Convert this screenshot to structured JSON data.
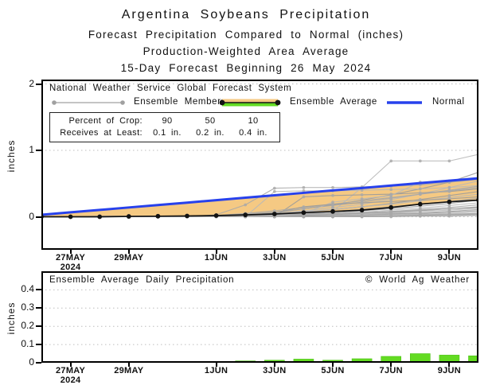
{
  "header": {
    "title": "Argentina Soybeans Precipitation",
    "subtitle1": "Forecast Precipitation Compared to Normal (inches)",
    "subtitle2": "Production-Weighted Area Average",
    "subtitle3": "15-Day Forecast Beginning 26 May 2024"
  },
  "legend": {
    "source": "National Weather Service Global Forecast System",
    "members_label": "Ensemble Members",
    "average_label": "Ensemble Average",
    "normal_label": "Normal"
  },
  "crop_table": {
    "row1_label": "Percent of Crop:",
    "row1_values": [
      "90",
      "50",
      "10"
    ],
    "row2_label": "Receives at Least:",
    "row2_values": [
      "0.1 in.",
      "0.2 in.",
      "0.4 in."
    ]
  },
  "panels": {
    "top_ylabel": "inches",
    "bottom_ylabel": "inches",
    "bottom_title": "Ensemble Average Daily Precipitation",
    "bottom_credit": "© World Ag Weather"
  },
  "colors": {
    "normal_line": "#2741EC",
    "deficit_fill": "#F5C983",
    "ensemble_average_line": "#121212",
    "ensemble_member_line": "#A9A9A9",
    "member_shades": [
      "#B8B8B8",
      "#A9A9A9",
      "#9B9B9B"
    ],
    "bar_fill": "#63DB22",
    "bar_stroke": "#4CC214",
    "grid": "#BEBEBE",
    "axis": "#000000"
  },
  "chart_data": [
    {
      "type": "line",
      "description": "Cumulative forecast precipitation vs normal, inches, daily points from 26 May to 10 Jun 2024",
      "x_start_date": "26MAY2024",
      "x_days": [
        0,
        1,
        2,
        3,
        4,
        5,
        6,
        7,
        8,
        9,
        10,
        11,
        12,
        13,
        14,
        15
      ],
      "x_ticks": [
        {
          "day": 1,
          "label": "27MAY",
          "sublabel": "2024"
        },
        {
          "day": 3,
          "label": "29MAY"
        },
        {
          "day": 6,
          "label": "1JUN"
        },
        {
          "day": 8,
          "label": "3JUN"
        },
        {
          "day": 10,
          "label": "5JUN"
        },
        {
          "day": 12,
          "label": "7JUN"
        },
        {
          "day": 14,
          "label": "9JUN"
        }
      ],
      "ylabel": "inches",
      "ylim": [
        -0.5,
        2.06
      ],
      "ytick_values": [
        0,
        1,
        2
      ],
      "ytick_labels": [
        "0",
        "1",
        "2"
      ],
      "grid": "dotted-horizontal",
      "deficit_fill_between": [
        "normal",
        "ensemble_average"
      ],
      "series": {
        "normal": [
          0.03,
          0.067,
          0.103,
          0.14,
          0.177,
          0.213,
          0.25,
          0.287,
          0.323,
          0.36,
          0.397,
          0.433,
          0.47,
          0.507,
          0.543,
          0.58
        ],
        "ensemble_average": [
          0,
          0,
          0,
          0.005,
          0.008,
          0.012,
          0.018,
          0.028,
          0.042,
          0.062,
          0.08,
          0.1,
          0.14,
          0.19,
          0.225,
          0.25
        ],
        "ensemble_members": [
          [
            0,
            0,
            0,
            0,
            0,
            0,
            0,
            0.01,
            0.02,
            0.04,
            0.08,
            0.44,
            0.84,
            0.84,
            0.84,
            0.94
          ],
          [
            0,
            0,
            0,
            0,
            0,
            0,
            0.03,
            0.18,
            0.43,
            0.44,
            0.44,
            0.45,
            0.46,
            0.48,
            0.52,
            0.56
          ],
          [
            0,
            0,
            0,
            0,
            0,
            0,
            0.01,
            0.03,
            0.06,
            0.12,
            0.18,
            0.25,
            0.33,
            0.42,
            0.52,
            0.67
          ],
          [
            0,
            0,
            0,
            0,
            0,
            0,
            0.01,
            0.02,
            0.05,
            0.09,
            0.14,
            0.19,
            0.26,
            0.34,
            0.44,
            0.54
          ],
          [
            0,
            0,
            0,
            0,
            0,
            0.01,
            0.02,
            0.04,
            0.07,
            0.12,
            0.17,
            0.22,
            0.28,
            0.34,
            0.4,
            0.46
          ],
          [
            0,
            0,
            0,
            0,
            0,
            0,
            0.01,
            0.02,
            0.04,
            0.07,
            0.11,
            0.15,
            0.2,
            0.26,
            0.32,
            0.38
          ],
          [
            0,
            0,
            0,
            0,
            0.01,
            0.01,
            0.02,
            0.03,
            0.05,
            0.08,
            0.11,
            0.15,
            0.19,
            0.24,
            0.29,
            0.34
          ],
          [
            0,
            0,
            0,
            0,
            0,
            0,
            0.01,
            0.02,
            0.03,
            0.05,
            0.08,
            0.11,
            0.15,
            0.19,
            0.23,
            0.28
          ],
          [
            0,
            0,
            0,
            0,
            0,
            0,
            0,
            0.01,
            0.02,
            0.04,
            0.06,
            0.09,
            0.12,
            0.16,
            0.2,
            0.25
          ],
          [
            0,
            0,
            0,
            0,
            0,
            0,
            0,
            0.01,
            0.02,
            0.03,
            0.05,
            0.07,
            0.1,
            0.13,
            0.17,
            0.21
          ],
          [
            0,
            0,
            0,
            0,
            0,
            0,
            0,
            0,
            0.01,
            0.02,
            0.04,
            0.06,
            0.08,
            0.11,
            0.14,
            0.18
          ],
          [
            0,
            0,
            0,
            0,
            0,
            0,
            0,
            0,
            0.01,
            0.02,
            0.03,
            0.05,
            0.07,
            0.09,
            0.12,
            0.15
          ],
          [
            0,
            0,
            0,
            0,
            0,
            0,
            0,
            0,
            0.01,
            0.01,
            0.02,
            0.04,
            0.06,
            0.08,
            0.1,
            0.13
          ],
          [
            0,
            0,
            0,
            0,
            0,
            0,
            0,
            0,
            0,
            0.01,
            0.02,
            0.03,
            0.05,
            0.06,
            0.08,
            0.11
          ],
          [
            0,
            0,
            0,
            0,
            0,
            0,
            0,
            0,
            0,
            0.01,
            0.01,
            0.02,
            0.04,
            0.05,
            0.07,
            0.09
          ],
          [
            0,
            0,
            0,
            0,
            0,
            0,
            0,
            0,
            0,
            0,
            0.01,
            0.02,
            0.03,
            0.04,
            0.05,
            0.07
          ],
          [
            0,
            0,
            0,
            0,
            0,
            0,
            0,
            0,
            0,
            0,
            0.01,
            0.01,
            0.02,
            0.03,
            0.04,
            0.05
          ],
          [
            0,
            0,
            0,
            0,
            0,
            0,
            0,
            0,
            0,
            0,
            0,
            0.01,
            0.01,
            0.02,
            0.03,
            0.04
          ],
          [
            0,
            0,
            0,
            0,
            0,
            0,
            0,
            0,
            0,
            0,
            0,
            0,
            0.01,
            0.01,
            0.02,
            0.03
          ],
          [
            0,
            0,
            0,
            0,
            0,
            0,
            0,
            0,
            0,
            0,
            0,
            0,
            0,
            0.01,
            0.01,
            0.02
          ],
          [
            0,
            0,
            0,
            0,
            0,
            0,
            0,
            0,
            0,
            0.3,
            0.32,
            0.33,
            0.34,
            0.36,
            0.38,
            0.42
          ],
          [
            0,
            0,
            0,
            0,
            0,
            0,
            0,
            0,
            0.01,
            0.05,
            0.22,
            0.27,
            0.32,
            0.52,
            0.54,
            0.58
          ],
          [
            0,
            0,
            0,
            0,
            0,
            0,
            0.02,
            0.05,
            0.09,
            0.14,
            0.19,
            0.24,
            0.29,
            0.34,
            0.39,
            0.44
          ],
          [
            0,
            0,
            0,
            0,
            0,
            0,
            0,
            0.02,
            0.06,
            0.15,
            0.19,
            0.21,
            0.23,
            0.25,
            0.27,
            0.3
          ],
          [
            0,
            0,
            0,
            0,
            0,
            0,
            0,
            0,
            0.38,
            0.39,
            0.39,
            0.4,
            0.41,
            0.42,
            0.44,
            0.47
          ],
          [
            0,
            0,
            0.01,
            0.01,
            0.01,
            0.01,
            0.02,
            0.02,
            0.03,
            0.04,
            0.05,
            0.06,
            0.08,
            0.1,
            0.12,
            0.14
          ]
        ]
      }
    },
    {
      "type": "bar",
      "title": "Ensemble Average Daily Precipitation",
      "description": "Ensemble average daily precipitation, inches per day, 26 May - 10 Jun 2024",
      "x_days": [
        0,
        1,
        2,
        3,
        4,
        5,
        6,
        7,
        8,
        9,
        10,
        11,
        12,
        13,
        14,
        15
      ],
      "values": [
        0.002,
        0.004,
        0.001,
        0.002,
        0.002,
        0.003,
        0.006,
        0.01,
        0.014,
        0.02,
        0.014,
        0.022,
        0.035,
        0.05,
        0.042,
        0.038
      ],
      "x_ticks": [
        {
          "day": 1,
          "label": "27MAY",
          "sublabel": "2024"
        },
        {
          "day": 3,
          "label": "29MAY"
        },
        {
          "day": 6,
          "label": "1JUN"
        },
        {
          "day": 8,
          "label": "3JUN"
        },
        {
          "day": 10,
          "label": "5JUN"
        },
        {
          "day": 12,
          "label": "7JUN"
        },
        {
          "day": 14,
          "label": "9JUN"
        }
      ],
      "ylabel": "inches",
      "ylim": [
        0,
        0.5
      ],
      "ytick_values": [
        0,
        0.1,
        0.2,
        0.3,
        0.4
      ],
      "ytick_labels": [
        "0",
        "0.1",
        "0.2",
        "0.3",
        "0.4"
      ],
      "grid": "dotted-horizontal"
    }
  ]
}
